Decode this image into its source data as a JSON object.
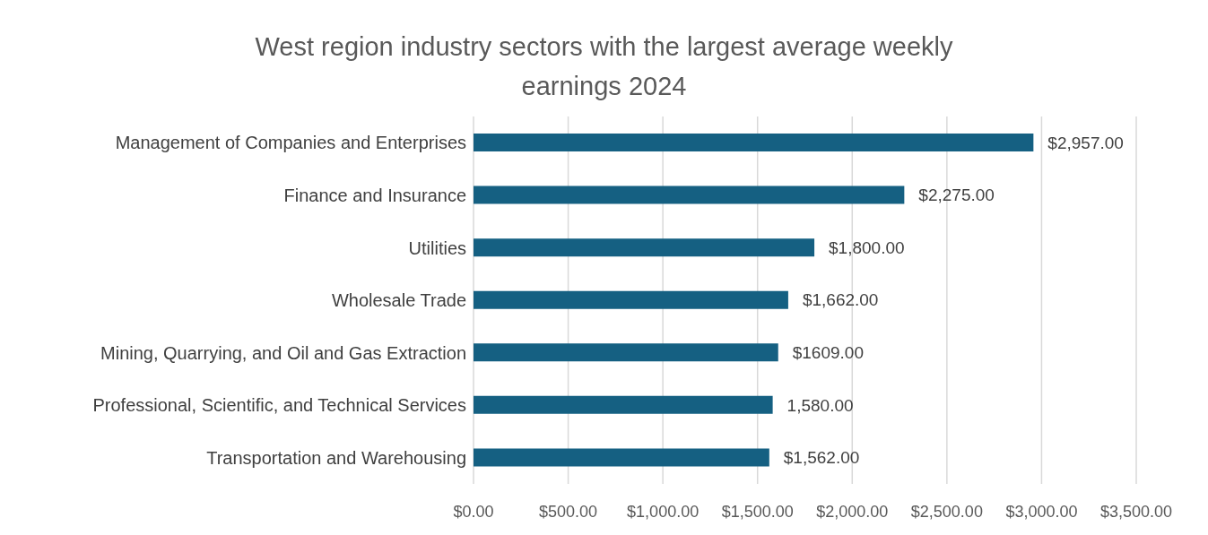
{
  "chart_data": {
    "type": "bar",
    "orientation": "horizontal",
    "title": "West region industry sectors with the largest average weekly earnings 2024",
    "categories": [
      "Management of Companies and Enterprises",
      "Finance and Insurance",
      "Utilities",
      "Wholesale Trade",
      "Mining, Quarrying, and Oil and Gas Extraction",
      "Professional, Scientific, and Technical Services",
      "Transportation and Warehousing"
    ],
    "values": [
      2957,
      2275,
      1800,
      1662,
      1609,
      1580,
      1562
    ],
    "value_labels": [
      "$2,957.00",
      "$2,275.00",
      "$1,800.00",
      "$1,662.00",
      "$1609.00",
      "1,580.00",
      "$1,562.00"
    ],
    "color": "#156082",
    "xlim": [
      0,
      3500
    ],
    "xticks": [
      {
        "value": 0,
        "label": "$0.00"
      },
      {
        "value": 500,
        "label": "$500.00"
      },
      {
        "value": 1000,
        "label": "$1,000.00"
      },
      {
        "value": 1500,
        "label": "$1,500.00"
      },
      {
        "value": 2000,
        "label": "$2,000.00"
      },
      {
        "value": 2500,
        "label": "$2,500.00"
      },
      {
        "value": 3000,
        "label": "$3,000.00"
      },
      {
        "value": 3500,
        "label": "$3,500.00"
      }
    ],
    "grid": "x"
  }
}
